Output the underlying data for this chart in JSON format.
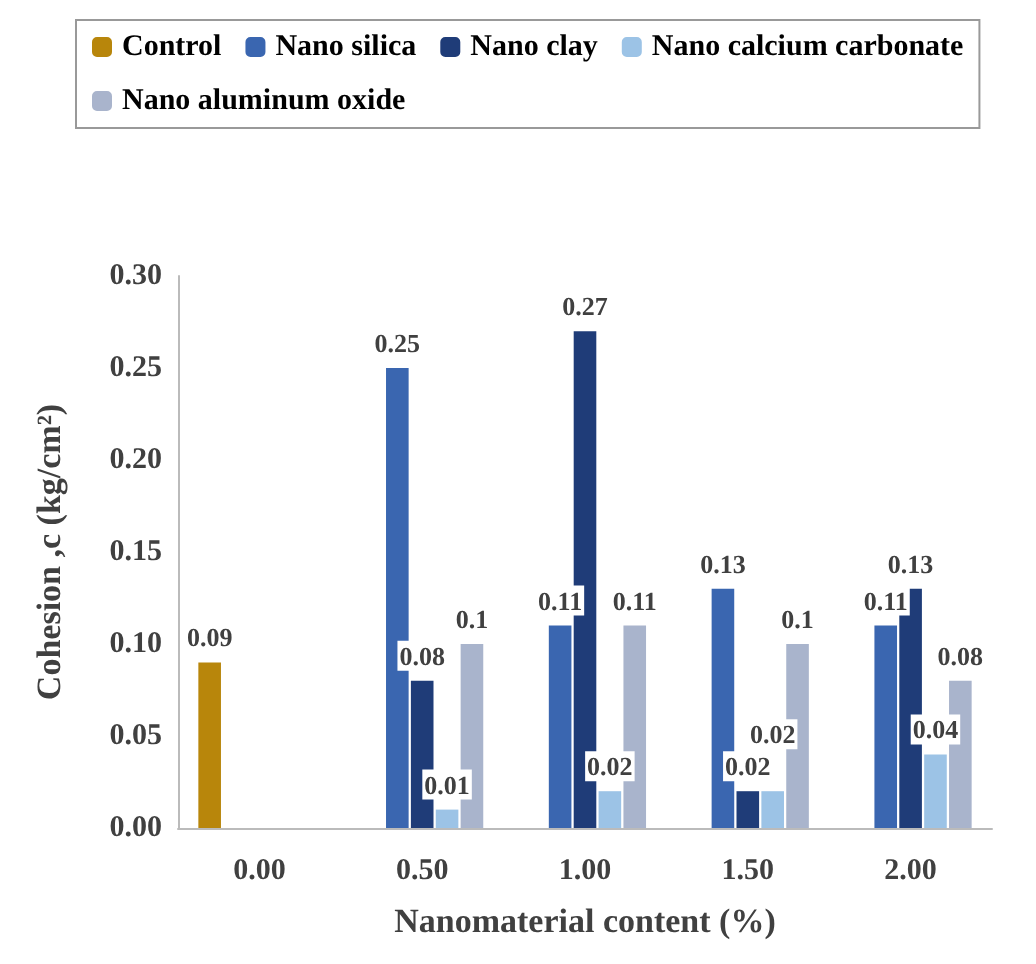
{
  "chart_data": {
    "type": "bar",
    "xlabel": "Nanomaterial content (%)",
    "ylabel": "Cohesion ,c (kg/cm²)",
    "categories": [
      "0.00",
      "0.50",
      "1.00",
      "1.50",
      "2.00"
    ],
    "ylim": [
      0,
      0.3
    ],
    "yticks": [
      {
        "value": 0,
        "label": "0.00"
      },
      {
        "value": 0.05,
        "label": "0.05"
      },
      {
        "value": 0.1,
        "label": "0.10"
      },
      {
        "value": 0.15,
        "label": "0.15"
      },
      {
        "value": 0.2,
        "label": "0.20"
      },
      {
        "value": 0.25,
        "label": "0.25"
      },
      {
        "value": 0.3,
        "label": "0.30"
      }
    ],
    "legend": "top",
    "grid": false,
    "series": [
      {
        "name": "Control",
        "color": "#b8860b",
        "values": [
          0.09,
          null,
          null,
          null,
          null
        ],
        "value_labels": [
          "0.09",
          null,
          null,
          null,
          null
        ]
      },
      {
        "name": "Nano silica",
        "color": "#3a66b0",
        "values": [
          null,
          0.25,
          0.11,
          0.13,
          0.11
        ],
        "value_labels": [
          null,
          "0.25",
          "0.11",
          "0.13",
          "0.11"
        ]
      },
      {
        "name": "Nano clay",
        "color": "#1f3c78",
        "values": [
          null,
          0.08,
          0.27,
          0.02,
          0.13
        ],
        "value_labels": [
          null,
          "0.08",
          "0.27",
          "0.02",
          "0.13"
        ]
      },
      {
        "name": "Nano calcium carbonate",
        "color": "#9cc3e6",
        "values": [
          null,
          0.01,
          0.02,
          0.02,
          0.04
        ],
        "value_labels": [
          null,
          "0.01",
          "0.02",
          "0.02",
          "0.04"
        ]
      },
      {
        "name": "Nano aluminum oxide",
        "color": "#a9b4cc",
        "values": [
          null,
          0.1,
          0.11,
          0.1,
          0.08
        ],
        "value_labels": [
          null,
          "0.1",
          "0.11",
          "0.1",
          "0.08"
        ]
      }
    ]
  }
}
